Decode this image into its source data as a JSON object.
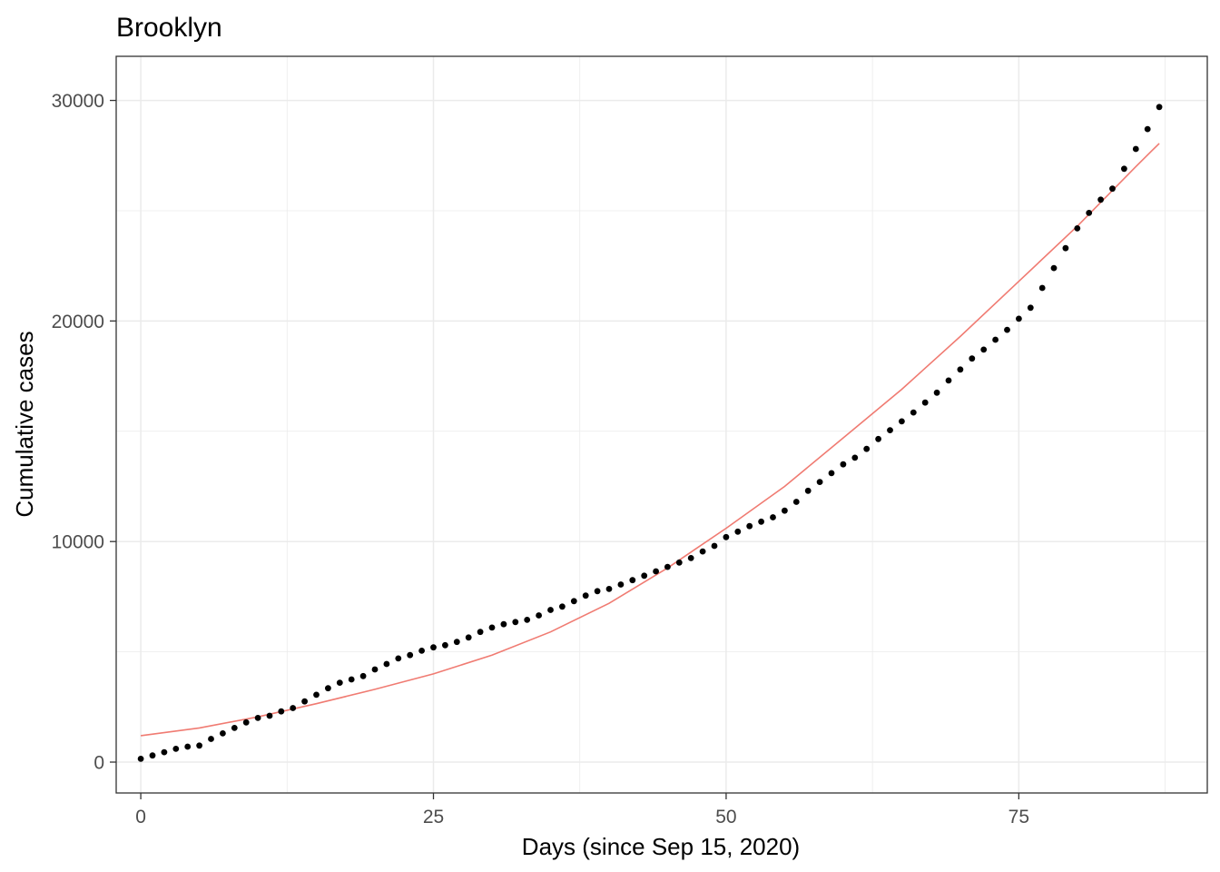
{
  "chart_data": {
    "type": "scatter",
    "title": "Brooklyn",
    "xlabel": "Days (since Sep 15, 2020)",
    "ylabel": "Cumulative cases",
    "xlim": [
      -2.1,
      91.1
    ],
    "ylim": [
      -1400,
      32000
    ],
    "x_ticks": [
      0,
      25,
      50,
      75
    ],
    "x_tick_labels": [
      "0",
      "25",
      "50",
      "75"
    ],
    "y_ticks": [
      0,
      10000,
      20000,
      30000
    ],
    "y_tick_labels": [
      "0",
      "10000",
      "20000",
      "30000"
    ],
    "grid": true,
    "legend": "none",
    "colors": {
      "points": "#000000",
      "fit": "#f07b72",
      "panel_border": "#333333",
      "grid": "#ebebeb"
    },
    "series": [
      {
        "type": "scatter",
        "x": [
          0,
          1,
          2,
          3,
          4,
          5,
          6,
          7,
          8,
          9,
          10,
          11,
          12,
          13,
          14,
          15,
          16,
          17,
          18,
          19,
          20,
          21,
          22,
          23,
          24,
          25,
          26,
          27,
          28,
          29,
          30,
          31,
          32,
          33,
          34,
          35,
          36,
          37,
          38,
          39,
          40,
          41,
          42,
          43,
          44,
          45,
          46,
          47,
          48,
          49,
          50,
          51,
          52,
          53,
          54,
          55,
          56,
          57,
          58,
          59,
          60,
          61,
          62,
          63,
          64,
          65,
          66,
          67,
          68,
          69,
          70,
          71,
          72,
          73,
          74,
          75,
          76,
          77,
          78,
          79,
          80,
          81,
          82,
          83,
          84,
          85,
          86,
          87
        ],
        "y": [
          150,
          300,
          450,
          600,
          700,
          750,
          1050,
          1300,
          1550,
          1800,
          2000,
          2100,
          2300,
          2450,
          2750,
          3050,
          3350,
          3600,
          3750,
          3900,
          4200,
          4450,
          4700,
          4850,
          5050,
          5200,
          5300,
          5450,
          5650,
          5900,
          6100,
          6250,
          6350,
          6450,
          6650,
          6900,
          7050,
          7300,
          7550,
          7750,
          7850,
          8050,
          8250,
          8450,
          8650,
          8850,
          9050,
          9250,
          9550,
          9800,
          10200,
          10450,
          10700,
          10900,
          11100,
          11400,
          11800,
          12300,
          12700,
          13100,
          13500,
          13800,
          14200,
          14650,
          15050,
          15450,
          15850,
          16300,
          16750,
          17300,
          17800,
          18300,
          18700,
          19150,
          19600,
          20100,
          20600,
          21500,
          22400,
          23300,
          24200,
          24900,
          25500,
          26000,
          26900,
          27800,
          28700,
          29700
        ]
      },
      {
        "type": "line",
        "x": [
          0,
          5,
          10,
          15,
          20,
          25,
          30,
          35,
          40,
          45,
          50,
          55,
          60,
          65,
          70,
          75,
          80,
          85,
          87
        ],
        "y": [
          1200,
          1550,
          2050,
          2650,
          3300,
          4000,
          4850,
          5900,
          7200,
          8800,
          10600,
          12500,
          14700,
          16900,
          19300,
          21800,
          24300,
          27000,
          28050
        ]
      }
    ]
  }
}
